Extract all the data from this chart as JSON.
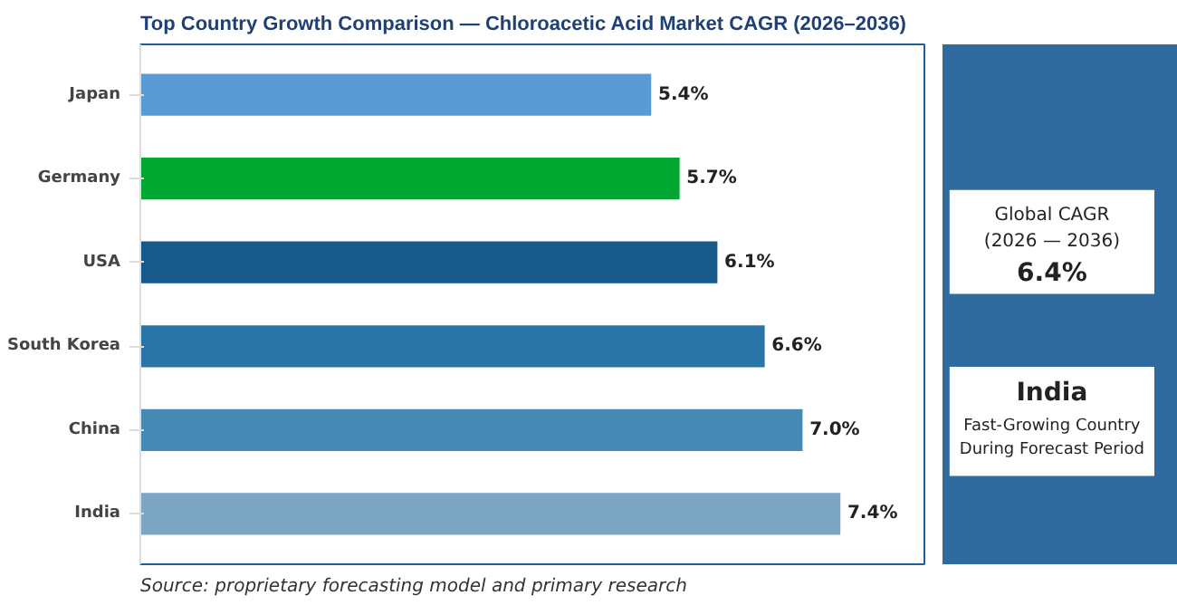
{
  "chart_data": {
    "type": "bar",
    "orientation": "horizontal",
    "title": "Top Country Growth Comparison — Chloroacetic Acid Market CAGR (2026–2036)",
    "categories": [
      "Japan",
      "Germany",
      "USA",
      "South Korea",
      "China",
      "India"
    ],
    "values": [
      5.4,
      5.7,
      6.1,
      6.6,
      7.0,
      7.4
    ],
    "colors": [
      "#5b9bd5",
      "#00a832",
      "#17598a",
      "#2a75a8",
      "#4589b5",
      "#7ba5c2"
    ],
    "value_labels": [
      "5.4%",
      "5.7%",
      "6.1%",
      "6.6%",
      "7.0%",
      "7.4%"
    ],
    "grid": false,
    "annotations": [
      "Global CAGR",
      "(2026 — 2036)",
      "6.4%",
      "India",
      "Fast-Growing Country",
      "During Forecast Period",
      "Source: proprietary forecasting model and primary research"
    ]
  }
}
